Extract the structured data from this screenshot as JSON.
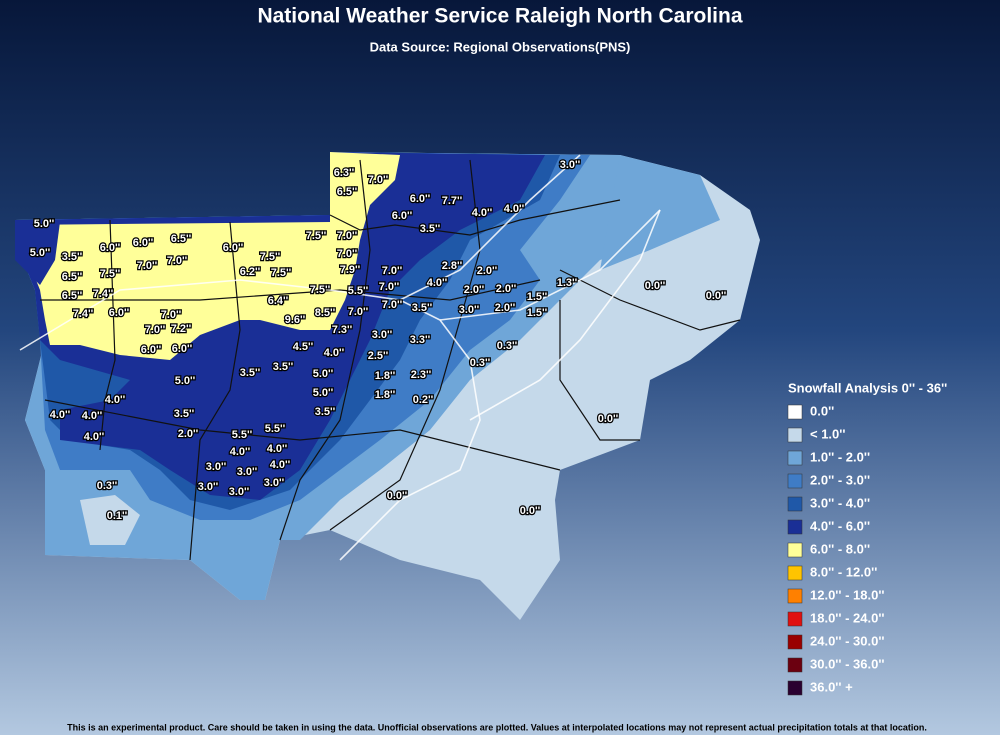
{
  "header": {
    "title": "National Weather Service Raleigh North Carolina",
    "subtitle": "Data Source: Regional Observations(PNS)"
  },
  "observations": [
    "5.0''",
    "5.0''",
    "3.5''",
    "6.0''",
    "6.0''",
    "6.5''",
    "6.0''",
    "7.5''",
    "7.0''",
    "6.5''",
    "7.5''",
    "7.0''",
    "7.0''",
    "7.5''",
    "6.2''",
    "7.5''",
    "7.0''",
    "6.5''",
    "7.4''",
    "7.4''",
    "6.0''",
    "7.0''",
    "7.0''",
    "7.2''",
    "6.4''",
    "7.5''",
    "7.9''",
    "5.5''",
    "7.0''",
    "7.0''",
    "6.0''",
    "6.0''",
    "9.6''",
    "8.5''",
    "7.0''",
    "7.0''",
    "3.5''",
    "7.3''",
    "3.0''",
    "3.3''",
    "6.3''",
    "7.0''",
    "6.5''",
    "6.0''",
    "7.7''",
    "4.0''",
    "4.0''",
    "6.0''",
    "3.5''",
    "3.0''",
    "2.8''",
    "2.0''",
    "4.0''",
    "2.0''",
    "2.0''",
    "1.5''",
    "1.3''",
    "3.0''",
    "2.0''",
    "1.5''",
    "0.0''",
    "0.0''",
    "4.5''",
    "4.0''",
    "2.5''",
    "0.3''",
    "0.3''",
    "5.0''",
    "3.5''",
    "3.5''",
    "5.0''",
    "1.8''",
    "2.3''",
    "5.0''",
    "1.8''",
    "0.2''",
    "4.0''",
    "4.0''",
    "4.0''",
    "3.5''",
    "3.5''",
    "0.0''",
    "4.0''",
    "2.0''",
    "5.5''",
    "5.5''",
    "4.0''",
    "4.0''",
    "3.0''",
    "3.0''",
    "4.0''",
    "0.3''",
    "3.0''",
    "3.0''",
    "3.0''",
    "0.0''",
    "0.0''",
    "0.1''"
  ],
  "legend": {
    "title": "Snowfall Analysis 0'' - 36''",
    "entries": [
      {
        "label": "0.0''",
        "color": "#ffffff"
      },
      {
        "label": "< 1.0''",
        "color": "#c5d9ea"
      },
      {
        "label": "1.0'' - 2.0''",
        "color": "#6fa6d8"
      },
      {
        "label": "2.0'' - 3.0''",
        "color": "#3f7cc6"
      },
      {
        "label": "3.0'' - 4.0''",
        "color": "#1f58a8"
      },
      {
        "label": "4.0'' - 6.0''",
        "color": "#1a2f96"
      },
      {
        "label": "6.0'' - 8.0''",
        "color": "#ffff99"
      },
      {
        "label": "8.0'' - 12.0''",
        "color": "#ffc400"
      },
      {
        "label": "12.0'' - 18.0''",
        "color": "#ff8000"
      },
      {
        "label": "18.0'' - 24.0''",
        "color": "#e01010"
      },
      {
        "label": "24.0'' - 30.0''",
        "color": "#990000"
      },
      {
        "label": "30.0'' - 36.0''",
        "color": "#6b0010"
      },
      {
        "label": "36.0'' +",
        "color": "#2a0030"
      }
    ]
  },
  "footer": {
    "disclaimer": "This is an experimental product. Care should be taken in using the data. Unofficial observations are plotted. Values at interpolated locations may not represent actual precipitation totals at that location."
  }
}
